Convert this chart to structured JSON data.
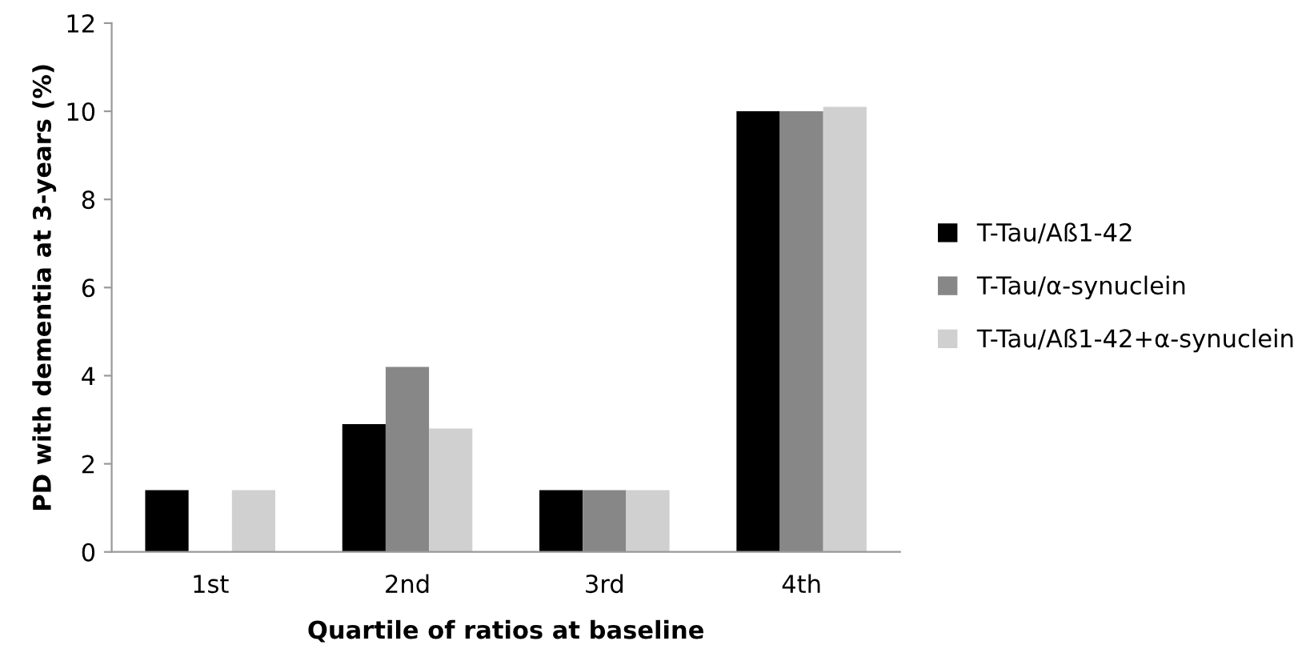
{
  "chart_data": {
    "type": "bar",
    "xlabel": "Quartile of ratios at baseline",
    "ylabel": "PD with dementia at 3-years (%)",
    "categories": [
      "1st",
      "2nd",
      "3rd",
      "4th"
    ],
    "series": [
      {
        "name": "T-Tau/Aß1-42",
        "color": "#000000",
        "values": [
          1.4,
          2.9,
          1.4,
          10
        ]
      },
      {
        "name": "T-Tau/α-synuclein",
        "color": "#878787",
        "values": [
          0,
          4.2,
          1.4,
          10
        ]
      },
      {
        "name": "T-Tau/Aß1-42+α-synuclein",
        "color": "#d0d0d0",
        "values": [
          1.4,
          2.8,
          1.4,
          10.1
        ]
      }
    ],
    "ylim": [
      0,
      12
    ],
    "yticks": [
      0,
      2,
      4,
      6,
      8,
      10,
      12
    ],
    "grid": false,
    "legend": "right"
  }
}
